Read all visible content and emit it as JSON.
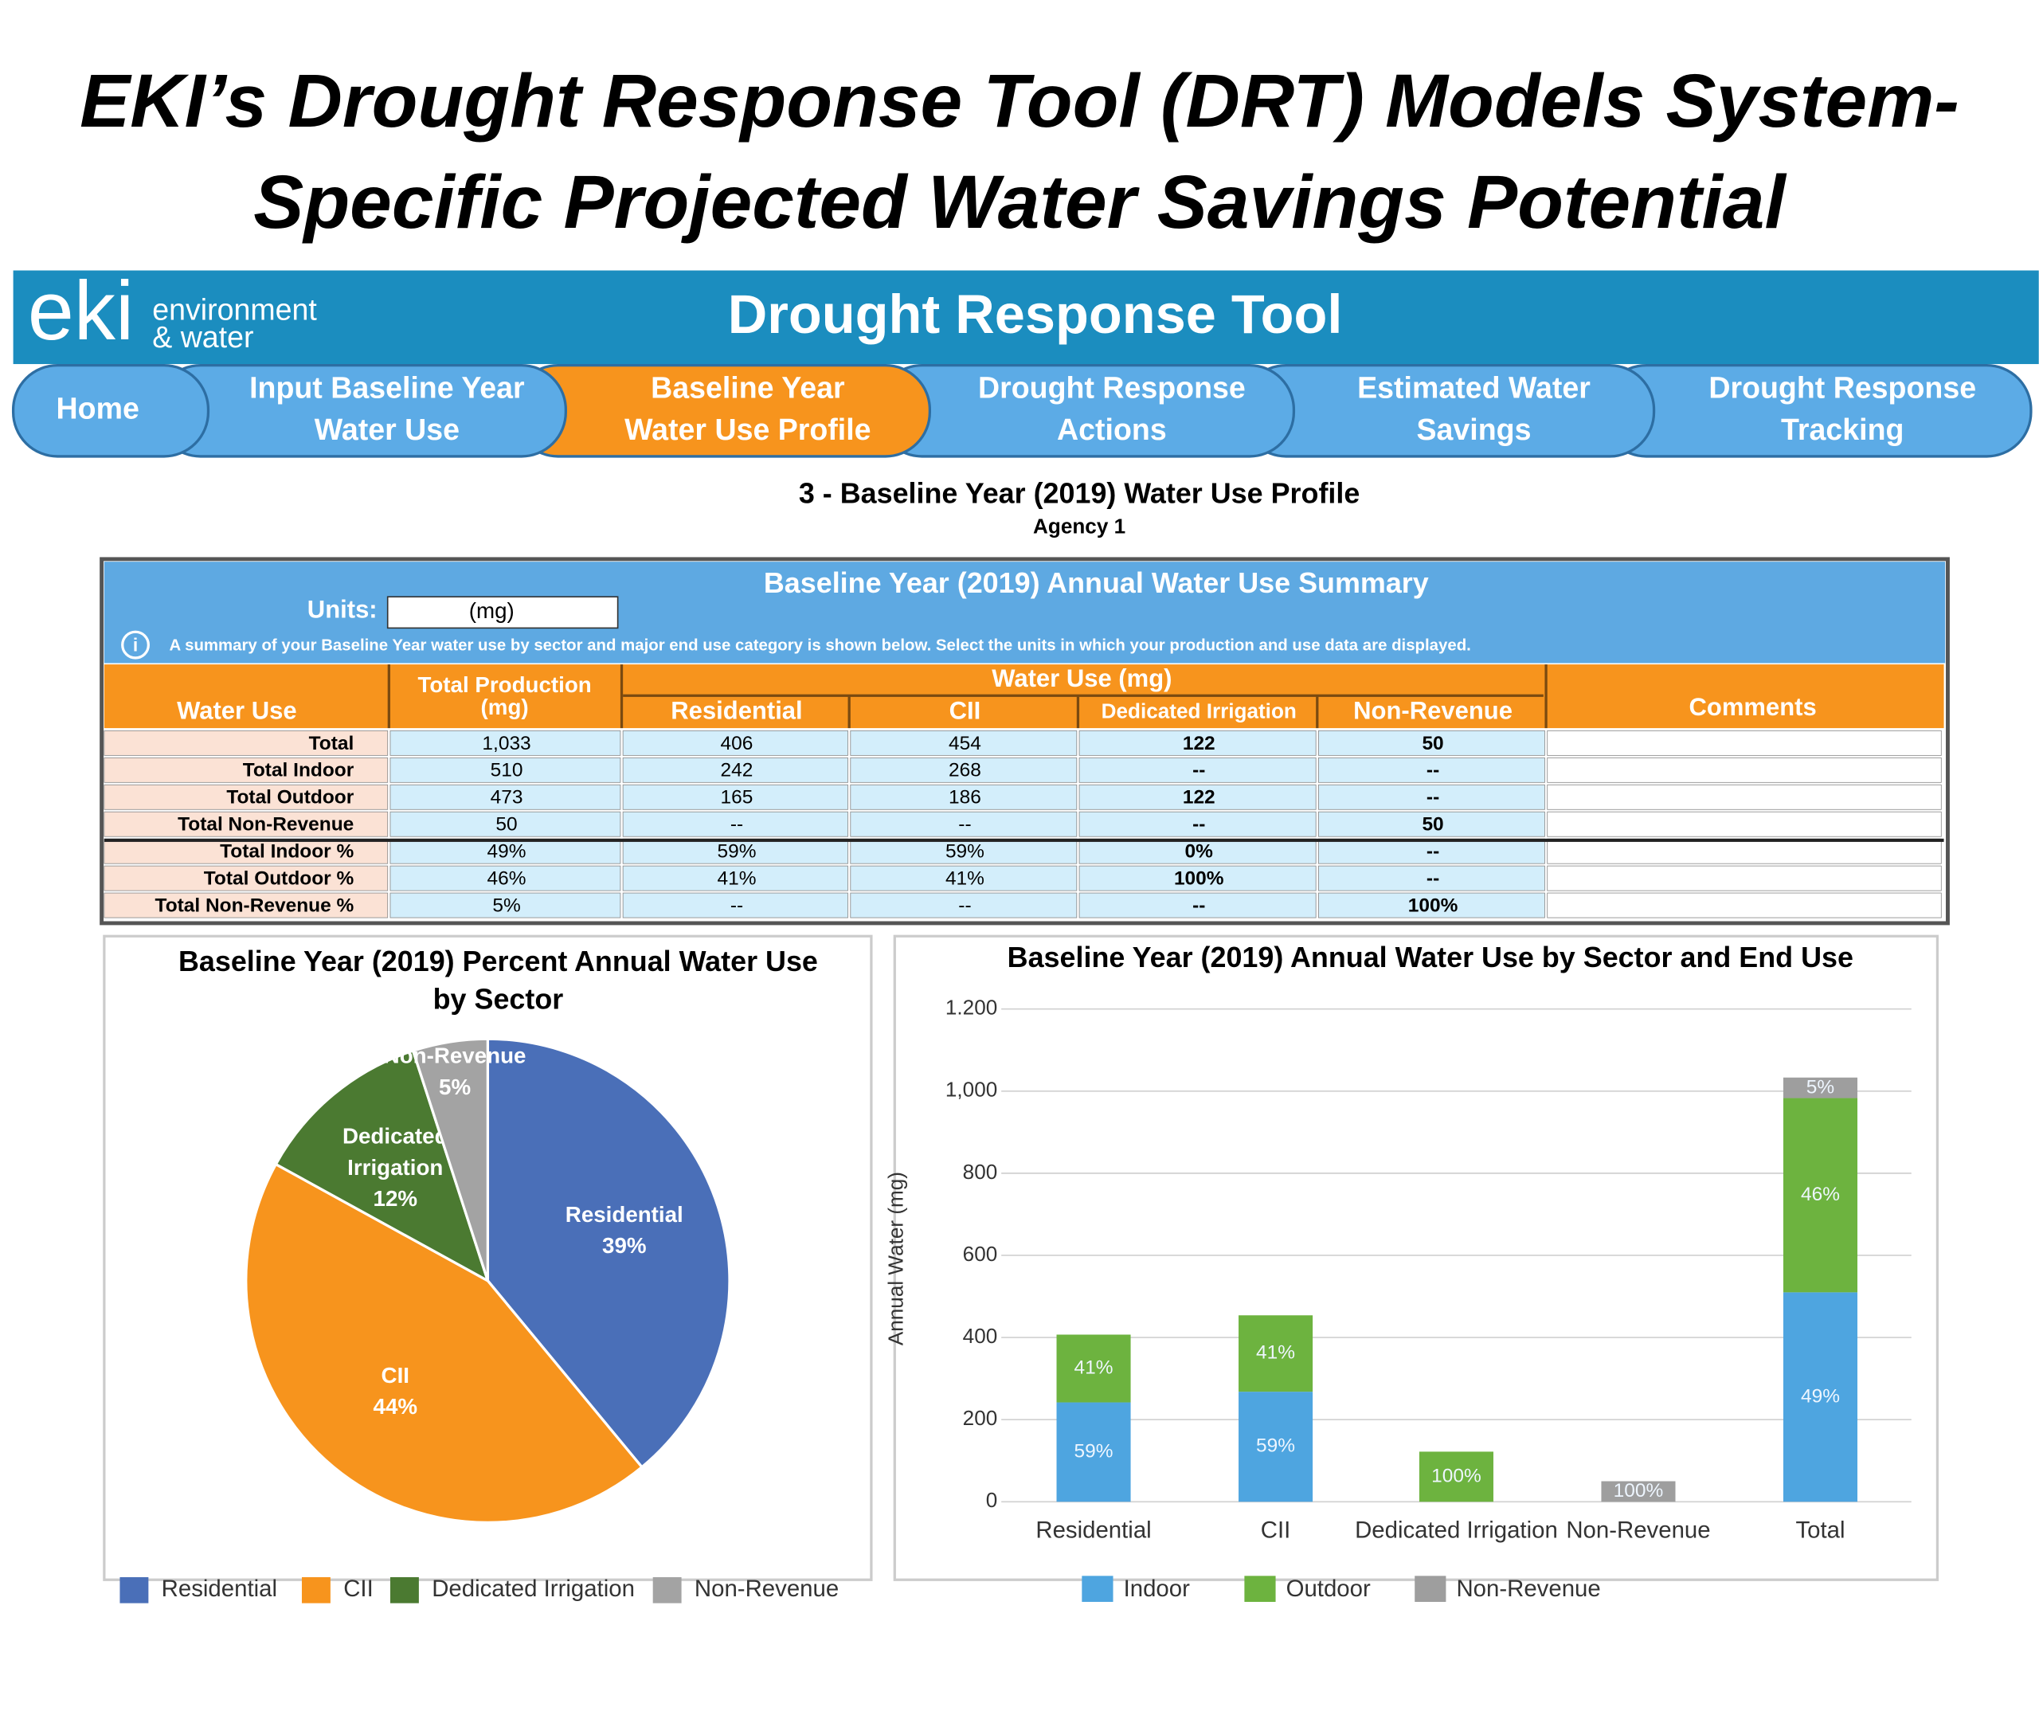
{
  "title": [
    "EKI’s Drought Response Tool (DRT) Models System-",
    "Specific Projected Water Savings Potential"
  ],
  "app": {
    "logo": "eki",
    "logo_lines": [
      "environment",
      "& water"
    ],
    "name": "Drought Response Tool"
  },
  "nav": [
    [
      "Home"
    ],
    [
      "Input Baseline Year",
      "Water Use"
    ],
    [
      "Baseline Year",
      "Water Use Profile"
    ],
    [
      "Drought Response",
      "Actions"
    ],
    [
      "Estimated Water",
      "Savings"
    ],
    [
      "Drought Response",
      "Tracking"
    ]
  ],
  "page": {
    "heading": "3 - Baseline Year (2019) Water Use Profile",
    "subheading": "Agency 1"
  },
  "table": {
    "title": "Baseline Year (2019) Annual Water Use Summary",
    "units_label": "Units:",
    "units_value": "(mg)",
    "note": "A summary of your Baseline Year water use by sector and major end use category is shown below. Select the units in which your production and use data are displayed.",
    "columns": {
      "water_use": "Water Use",
      "total_production": [
        "Total Production",
        "(mg)"
      ],
      "group": "Water Use (mg)",
      "sectors": [
        "Residential",
        "CII",
        "Dedicated Irrigation",
        "Non-Revenue"
      ],
      "comments": "Comments"
    },
    "rows": [
      [
        "Total",
        "1,033",
        "406",
        "454",
        "122",
        "50"
      ],
      [
        "Total Indoor",
        "510",
        "242",
        "268",
        "--",
        "--"
      ],
      [
        "Total Outdoor",
        "473",
        "165",
        "186",
        "122",
        "--"
      ],
      [
        "Total Non-Revenue",
        "50",
        "--",
        "--",
        "--",
        "50"
      ],
      [
        "Total Indoor %",
        "49%",
        "59%",
        "59%",
        "0%",
        "--"
      ],
      [
        "Total Outdoor %",
        "46%",
        "41%",
        "41%",
        "100%",
        "--"
      ],
      [
        "Total Non-Revenue %",
        "5%",
        "--",
        "--",
        "--",
        "100%"
      ]
    ]
  },
  "chart_data": [
    {
      "type": "pie",
      "title": [
        "Baseline Year (2019) Percent Annual Water Use",
        "by Sector"
      ],
      "categories": [
        "Residential",
        "CII",
        "Dedicated Irrigation",
        "Non-Revenue"
      ],
      "slice_labels": [
        [
          "Residential"
        ],
        [
          "CII"
        ],
        [
          "Dedicated",
          "Irrigation"
        ],
        [
          "Non-Revenue"
        ]
      ],
      "values": [
        39,
        44,
        12,
        5
      ],
      "value_labels": [
        "39%",
        "44%",
        "12%",
        "5%"
      ],
      "colors": [
        "#4a6fb8",
        "#f7941d",
        "#4b7a31",
        "#a3a3a3"
      ],
      "legend": "bottom"
    },
    {
      "type": "bar",
      "stacked": true,
      "title": "Baseline Year (2019) Annual Water Use by Sector and End Use",
      "y_label": "Annual Water (mg)",
      "categories": [
        "Residential",
        "CII",
        "Dedicated Irrigation",
        "Non-Revenue",
        "Total"
      ],
      "series": [
        {
          "name": "Indoor",
          "color": "#4ea5e0",
          "values": [
            242,
            268,
            null,
            null,
            510
          ],
          "segment_labels": [
            "59%",
            "59%",
            null,
            null,
            "49%"
          ]
        },
        {
          "name": "Outdoor",
          "color": "#6db33f",
          "values": [
            165,
            186,
            122,
            null,
            473
          ],
          "segment_labels": [
            "41%",
            "41%",
            "100%",
            null,
            "46%"
          ]
        },
        {
          "name": "Non-Revenue",
          "color": "#9e9e9e",
          "values": [
            null,
            null,
            null,
            50,
            50
          ],
          "segment_labels": [
            null,
            null,
            null,
            "100%",
            "5%"
          ]
        }
      ],
      "ylim": [
        0,
        1200
      ],
      "yticks": [
        0,
        200,
        400,
        600,
        800,
        {
          "value": 1000,
          "label": "1,000"
        },
        {
          "value": 1200,
          "label": "1.200"
        }
      ],
      "grid": true,
      "legend": "bottom"
    }
  ]
}
